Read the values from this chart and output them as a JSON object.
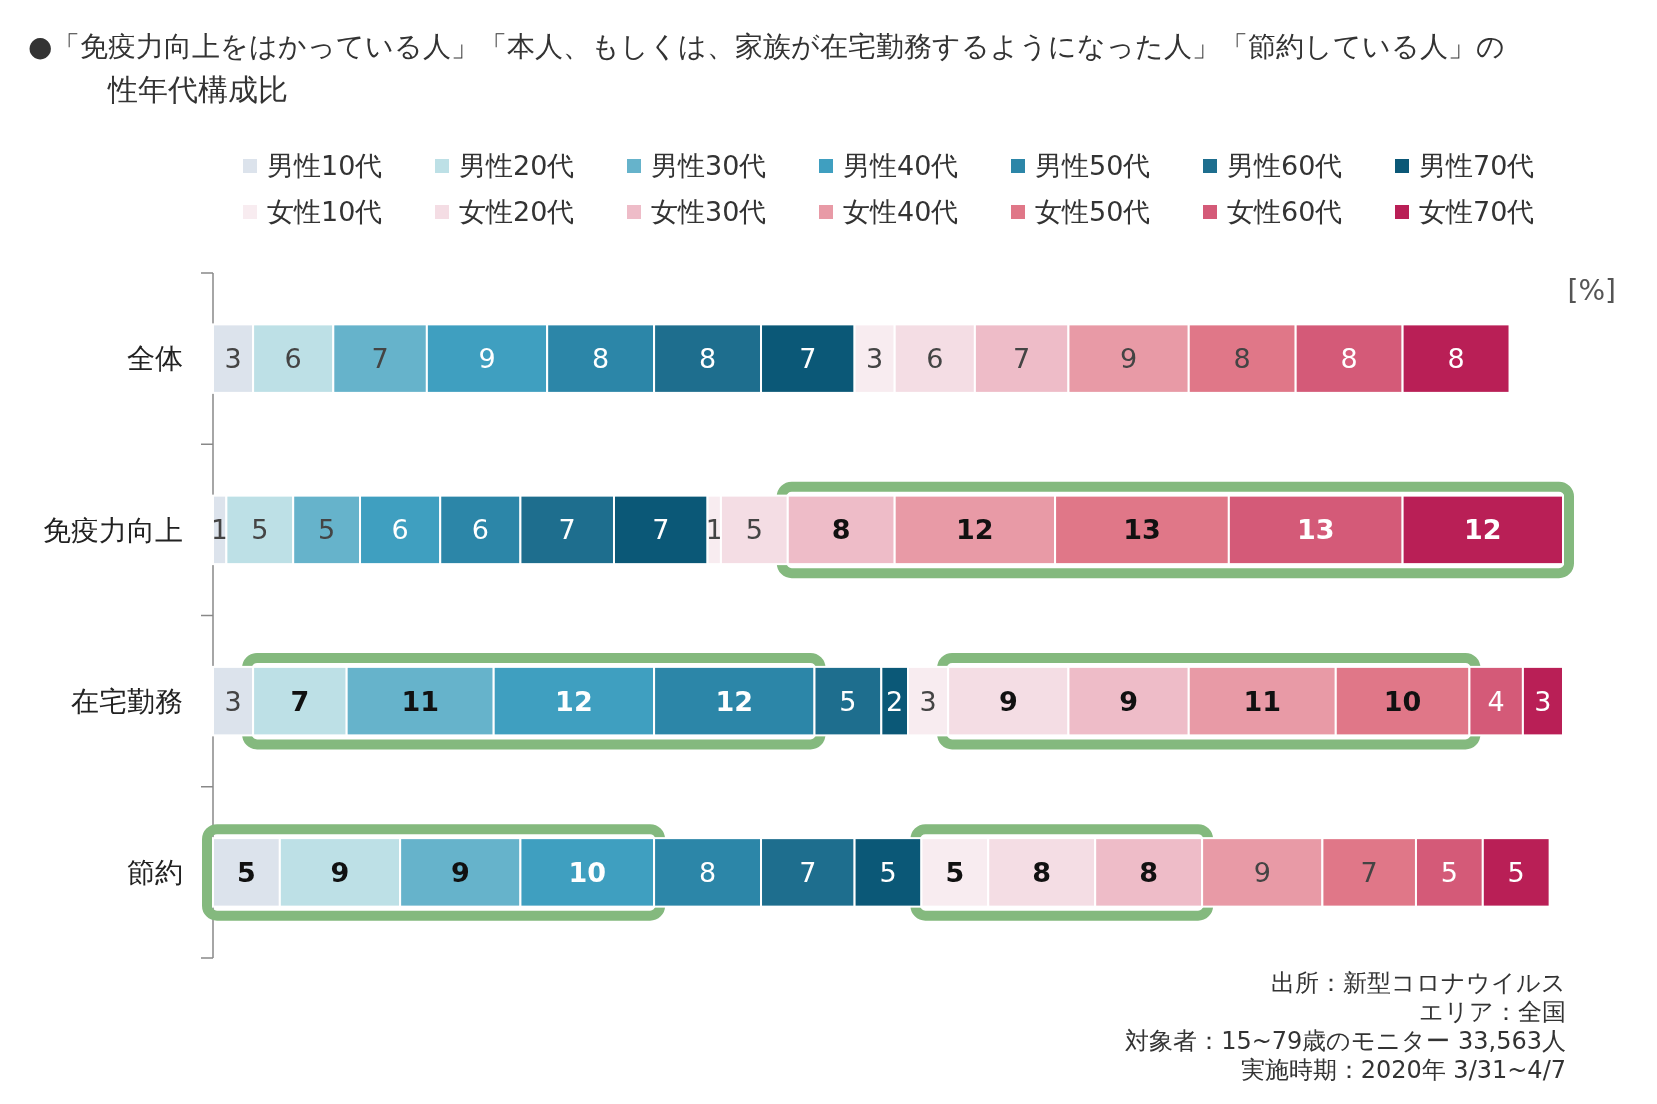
{
  "chart_data": {
    "type": "bar",
    "orientation": "horizontal",
    "stacked": true,
    "title": "●「免疫力向上をはかっている人」「本人、もしくは、家族が在宅勤務するようになった人」「節約している人」の性年代構成比",
    "xlabel": "[%]",
    "categories": [
      "全体",
      "免疫力向上",
      "在宅勤務",
      "節約"
    ],
    "legend": "top",
    "data_labels": true,
    "series": [
      {
        "name": "男性10代",
        "color": "#dce3ec",
        "values": [
          3,
          1,
          3,
          5
        ]
      },
      {
        "name": "男性20代",
        "color": "#bde0e6",
        "values": [
          6,
          5,
          7,
          9
        ]
      },
      {
        "name": "男性30代",
        "color": "#66b3cb",
        "values": [
          7,
          5,
          11,
          9
        ]
      },
      {
        "name": "男性40代",
        "color": "#3f9fc0",
        "values": [
          9,
          6,
          12,
          10
        ]
      },
      {
        "name": "男性50代",
        "color": "#2c86a8",
        "values": [
          8,
          6,
          12,
          8
        ]
      },
      {
        "name": "男性60代",
        "color": "#1e6e8e",
        "values": [
          8,
          7,
          5,
          7
        ]
      },
      {
        "name": "男性70代",
        "color": "#0b5877",
        "values": [
          7,
          7,
          2,
          5
        ]
      },
      {
        "name": "女性10代",
        "color": "#f8ecf0",
        "values": [
          3,
          1,
          3,
          5
        ]
      },
      {
        "name": "女性20代",
        "color": "#f4dde4",
        "values": [
          6,
          5,
          9,
          8
        ]
      },
      {
        "name": "女性30代",
        "color": "#eebcc8",
        "values": [
          7,
          8,
          9,
          8
        ]
      },
      {
        "name": "女性40代",
        "color": "#e89aa6",
        "values": [
          9,
          12,
          11,
          9
        ]
      },
      {
        "name": "女性50代",
        "color": "#e07788",
        "values": [
          8,
          13,
          10,
          7
        ]
      },
      {
        "name": "女性60代",
        "color": "#d45a78",
        "values": [
          8,
          13,
          4,
          5
        ]
      },
      {
        "name": "女性70代",
        "color": "#b91f56",
        "values": [
          8,
          12,
          3,
          5
        ]
      }
    ],
    "annotations": [
      "出所：新型コロナウイルス",
      "エリア：全国",
      "対象者：15~79歳のモニター 33,563人",
      "実施時期：2020年 3/31~4/7"
    ]
  }
}
